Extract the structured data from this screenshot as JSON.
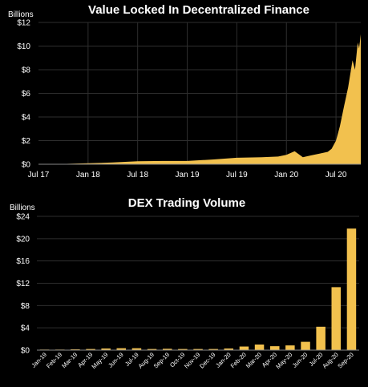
{
  "colors": {
    "background": "#000000",
    "gold": "#F2C14E",
    "grid": "#2e2e2e"
  },
  "chart_data": [
    {
      "type": "area",
      "title": "Value Locked In Decentralized Finance",
      "unit_label": "Billions",
      "ylim": [
        0,
        12
      ],
      "y_ticks": [
        "$0",
        "$2",
        "$4",
        "$6",
        "$8",
        "$10",
        "$12"
      ],
      "y_tick_values": [
        0,
        2,
        4,
        6,
        8,
        10,
        12
      ],
      "xlim": [
        "2017-07",
        "2020-10"
      ],
      "x_ticks": [
        "Jul 17",
        "Jan 18",
        "Jul 18",
        "Jan 19",
        "Jul 19",
        "Jan 20",
        "Jul 20"
      ],
      "x_tick_dates": [
        "2017-07",
        "2018-01",
        "2018-07",
        "2019-01",
        "2019-07",
        "2020-01",
        "2020-07"
      ],
      "grid": true,
      "series": [
        {
          "x": [
            "2017-07",
            "2017-10",
            "2018-01",
            "2018-04",
            "2018-07",
            "2018-10",
            "2019-01",
            "2019-04",
            "2019-07",
            "2019-10",
            "2019-12",
            "2020-01",
            "2020-02",
            "2020-03",
            "2020-04",
            "2020-05",
            "2020-06",
            "2020-06-15",
            "2020-07",
            "2020-07-15",
            "2020-08",
            "2020-08-15",
            "2020-09",
            "2020-09-10",
            "2020-09-20",
            "2020-09-25",
            "2020-10"
          ],
          "values": [
            0.01,
            0.03,
            0.08,
            0.15,
            0.25,
            0.28,
            0.28,
            0.4,
            0.55,
            0.6,
            0.65,
            0.8,
            1.1,
            0.6,
            0.75,
            0.9,
            1.05,
            1.3,
            2.0,
            3.2,
            5.0,
            6.5,
            8.8,
            8.0,
            10.3,
            9.8,
            11.0
          ]
        }
      ]
    },
    {
      "type": "bar",
      "title": "DEX Trading Volume",
      "unit_label": "Billions",
      "ylim": [
        0,
        24
      ],
      "y_ticks": [
        "$0",
        "$4",
        "$8",
        "$12",
        "$16",
        "$20",
        "$24"
      ],
      "y_tick_values": [
        0,
        4,
        8,
        12,
        16,
        20,
        24
      ],
      "grid": true,
      "categories": [
        "Jan-19",
        "Feb-19",
        "Mar-19",
        "Apr-19",
        "May-19",
        "Jun-19",
        "Jul-19",
        "Aug-19",
        "Sep-19",
        "Oct-19",
        "Nov-19",
        "Dec-19",
        "Jan-20",
        "Feb-20",
        "Mar-20",
        "Apr-20",
        "May-20",
        "Jun-20",
        "Jul-20",
        "Aug-20",
        "Sep-20"
      ],
      "values": [
        0.1,
        0.1,
        0.15,
        0.2,
        0.3,
        0.35,
        0.35,
        0.2,
        0.25,
        0.2,
        0.2,
        0.2,
        0.3,
        0.65,
        1.0,
        0.7,
        0.85,
        1.5,
        4.2,
        11.3,
        21.8
      ]
    }
  ]
}
